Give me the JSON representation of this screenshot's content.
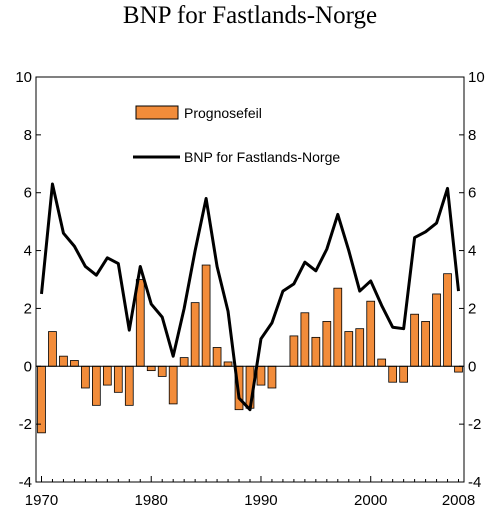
{
  "chart_data": {
    "type": "bar+line",
    "title": "BNP for Fastlands-Norge",
    "xlabel": "",
    "ylabel": "",
    "ylim": [
      -4,
      10
    ],
    "yticks": [
      -4,
      -2,
      0,
      2,
      4,
      6,
      8,
      10
    ],
    "xticks": [
      "1970",
      "1980",
      "1990",
      "2000",
      "2008"
    ],
    "grid": false,
    "legend_position": "top-center",
    "colors": {
      "bars": "#f28c3a",
      "line": "#000000",
      "bar_edge": "#000000"
    },
    "series": [
      {
        "name": "Prognosefeil",
        "type": "bar",
        "x": [
          1970,
          1971,
          1972,
          1973,
          1974,
          1975,
          1976,
          1977,
          1978,
          1979,
          1980,
          1981,
          1982,
          1983,
          1984,
          1985,
          1986,
          1987,
          1988,
          1989,
          1990,
          1991,
          1992,
          1993,
          1994,
          1995,
          1996,
          1997,
          1998,
          1999,
          2000,
          2001,
          2002,
          2003,
          2004,
          2005,
          2006,
          2007,
          2008
        ],
        "values": [
          -2.3,
          1.2,
          0.35,
          0.2,
          -0.75,
          -1.35,
          -0.65,
          -0.9,
          -1.35,
          3.0,
          -0.15,
          -0.35,
          -1.3,
          0.3,
          2.2,
          3.5,
          0.65,
          0.15,
          -1.5,
          -1.45,
          -0.65,
          -0.75,
          0.0,
          1.05,
          1.85,
          1.0,
          1.55,
          2.7,
          1.2,
          1.3,
          2.25,
          0.25,
          -0.55,
          -0.55,
          1.8,
          1.55,
          2.5,
          3.2,
          -0.2
        ]
      },
      {
        "name": "BNP for Fastlands-Norge",
        "type": "line",
        "x": [
          1970,
          1971,
          1972,
          1973,
          1974,
          1975,
          1976,
          1977,
          1978,
          1979,
          1980,
          1981,
          1982,
          1983,
          1984,
          1985,
          1986,
          1987,
          1988,
          1989,
          1990,
          1991,
          1992,
          1993,
          1994,
          1995,
          1996,
          1997,
          1998,
          1999,
          2000,
          2001,
          2002,
          2003,
          2004,
          2005,
          2006,
          2007,
          2008
        ],
        "values": [
          2.5,
          6.3,
          4.6,
          4.15,
          3.45,
          3.15,
          3.75,
          3.55,
          1.25,
          3.45,
          2.15,
          1.7,
          0.35,
          2.0,
          4.0,
          5.8,
          3.45,
          1.9,
          -1.1,
          -1.5,
          0.95,
          1.5,
          2.6,
          2.85,
          3.6,
          3.3,
          4.05,
          5.25,
          4.0,
          2.6,
          2.95,
          2.1,
          1.35,
          1.3,
          4.45,
          4.65,
          4.95,
          6.15,
          2.6
        ]
      }
    ]
  }
}
